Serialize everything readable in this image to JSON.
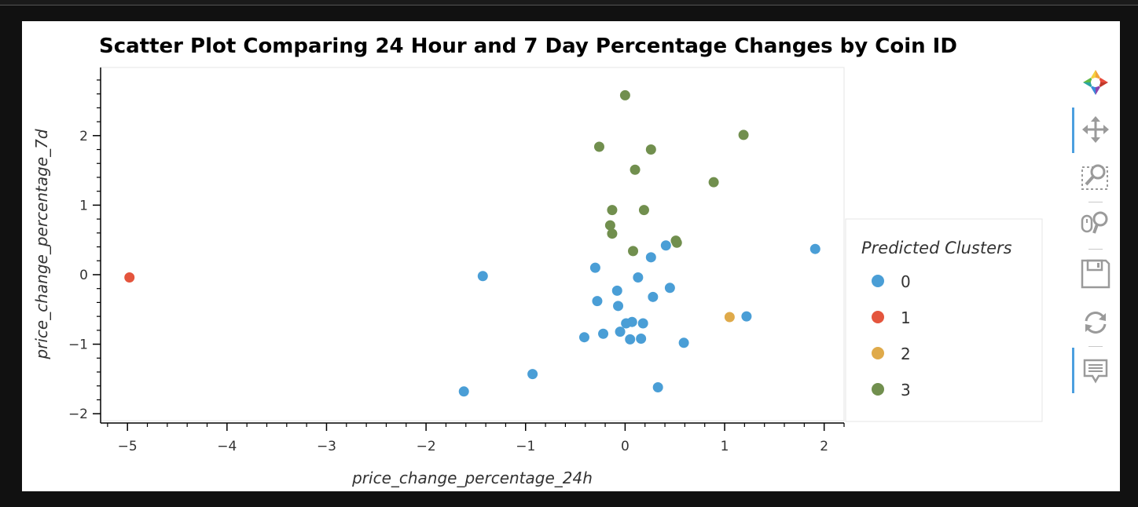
{
  "chart_data": {
    "type": "scatter",
    "title": "Scatter Plot Comparing 24 Hour and 7 Day Percentage Changes by Coin ID",
    "xlabel": "price_change_percentage_24h",
    "ylabel": "price_change_percentage_7d",
    "xlim": [
      -5.27,
      2.2
    ],
    "ylim": [
      -2.1,
      2.98
    ],
    "xticks": [
      -5,
      -4,
      -3,
      -2,
      -1,
      0,
      1,
      2
    ],
    "yticks": [
      -2,
      -1,
      0,
      1,
      2
    ],
    "legend": {
      "title": "Predicted Clusters",
      "position": "right"
    },
    "series": [
      {
        "name": "0",
        "color": "#4a9ed6",
        "points": [
          [
            -1.43,
            -0.02
          ],
          [
            -1.62,
            -1.68
          ],
          [
            -0.93,
            -1.43
          ],
          [
            -0.41,
            -0.9
          ],
          [
            -0.3,
            0.1
          ],
          [
            -0.28,
            -0.38
          ],
          [
            -0.22,
            -0.85
          ],
          [
            -0.08,
            -0.23
          ],
          [
            -0.07,
            -0.45
          ],
          [
            -0.05,
            -0.82
          ],
          [
            0.01,
            -0.7
          ],
          [
            0.05,
            -0.93
          ],
          [
            0.07,
            -0.68
          ],
          [
            0.13,
            -0.04
          ],
          [
            0.16,
            -0.92
          ],
          [
            0.18,
            -0.7
          ],
          [
            0.26,
            0.25
          ],
          [
            0.28,
            -0.32
          ],
          [
            0.33,
            -1.62
          ],
          [
            0.41,
            0.42
          ],
          [
            0.45,
            -0.19
          ],
          [
            0.59,
            -0.98
          ],
          [
            1.22,
            -0.6
          ],
          [
            1.91,
            0.37
          ]
        ]
      },
      {
        "name": "1",
        "color": "#e4553d",
        "points": [
          [
            -4.98,
            -0.04
          ]
        ]
      },
      {
        "name": "2",
        "color": "#dfaa4a",
        "points": [
          [
            1.05,
            -0.61
          ]
        ]
      },
      {
        "name": "3",
        "color": "#718f4e",
        "points": [
          [
            0.0,
            2.58
          ],
          [
            -0.26,
            1.84
          ],
          [
            0.26,
            1.8
          ],
          [
            0.1,
            1.51
          ],
          [
            1.19,
            2.01
          ],
          [
            0.89,
            1.33
          ],
          [
            -0.13,
            0.93
          ],
          [
            0.19,
            0.93
          ],
          [
            -0.15,
            0.71
          ],
          [
            -0.13,
            0.59
          ],
          [
            0.08,
            0.34
          ],
          [
            0.51,
            0.49
          ],
          [
            0.52,
            0.46
          ]
        ]
      }
    ]
  },
  "toolbar": {
    "tools": [
      "bokeh-logo-icon",
      "pan-icon",
      "box-zoom-icon",
      "wheel-zoom-icon",
      "save-icon",
      "reset-icon",
      "hover-icon"
    ]
  }
}
